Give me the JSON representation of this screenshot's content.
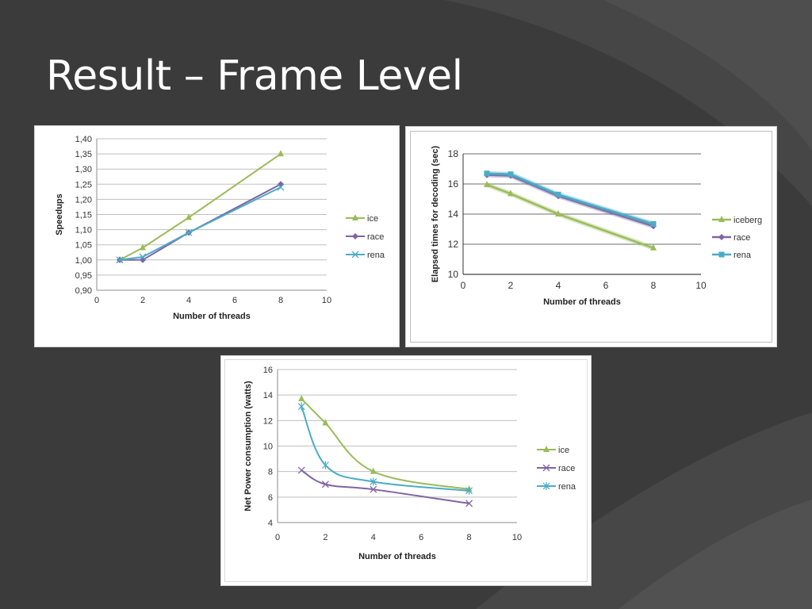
{
  "slide": {
    "title": "Result – Frame Level"
  },
  "colors": {
    "ice": "#9bbb59",
    "race": "#8064a2",
    "rena": "#4bacc6"
  },
  "chart_data": [
    {
      "id": "speedup",
      "type": "line",
      "xlabel": "Number of threads",
      "ylabel": "Speedups",
      "xlim": [
        0,
        10
      ],
      "ylim": [
        0.9,
        1.4
      ],
      "xticks": [
        "0",
        "2",
        "4",
        "6",
        "8",
        "10"
      ],
      "yticks": [
        "0,90",
        "0,95",
        "1,00",
        "1,05",
        "1,10",
        "1,15",
        "1,20",
        "1,25",
        "1,30",
        "1,35",
        "1,40"
      ],
      "grid": true,
      "legend": "right",
      "x": [
        1,
        2,
        4,
        8
      ],
      "series": [
        {
          "name": "ice",
          "values": [
            1.0,
            1.04,
            1.14,
            1.35
          ],
          "marker": "triangle"
        },
        {
          "name": "race",
          "values": [
            1.0,
            1.0,
            1.09,
            1.25
          ],
          "marker": "diamond"
        },
        {
          "name": "rena",
          "values": [
            1.0,
            1.01,
            1.09,
            1.24
          ],
          "marker": "x"
        }
      ]
    },
    {
      "id": "elapsed",
      "type": "line",
      "xlabel": "Number of threads",
      "ylabel": "Elapsed times for decoding (sec)",
      "xlim": [
        0,
        10
      ],
      "ylim": [
        10,
        18
      ],
      "xticks": [
        "0",
        "2",
        "4",
        "6",
        "8",
        "10"
      ],
      "yticks": [
        "10",
        "12",
        "14",
        "16",
        "18"
      ],
      "grid": true,
      "legend": "right",
      "x": [
        1,
        2,
        4,
        8
      ],
      "series": [
        {
          "name": "iceberg",
          "values": [
            15.95,
            15.35,
            14.0,
            11.75
          ],
          "marker": "triangle"
        },
        {
          "name": "race",
          "values": [
            16.6,
            16.55,
            15.2,
            13.2
          ],
          "marker": "diamond"
        },
        {
          "name": "rena",
          "values": [
            16.7,
            16.65,
            15.3,
            13.35
          ],
          "marker": "square"
        }
      ]
    },
    {
      "id": "power",
      "type": "line",
      "xlabel": "Number of threads",
      "ylabel": "Net Power consumption (watts)",
      "xlim": [
        0,
        10
      ],
      "ylim": [
        4,
        16
      ],
      "xticks": [
        "0",
        "2",
        "4",
        "6",
        "8",
        "10"
      ],
      "yticks": [
        "4",
        "6",
        "8",
        "10",
        "12",
        "14",
        "16"
      ],
      "grid": true,
      "legend": "right",
      "x": [
        1,
        2,
        4,
        8
      ],
      "series": [
        {
          "name": "ice",
          "values": [
            13.7,
            11.8,
            8.0,
            6.6
          ],
          "marker": "triangle"
        },
        {
          "name": "race",
          "values": [
            8.1,
            7.0,
            6.6,
            5.5
          ],
          "marker": "x"
        },
        {
          "name": "rena",
          "values": [
            13.1,
            8.5,
            7.2,
            6.5
          ],
          "marker": "asterisk"
        }
      ]
    }
  ]
}
